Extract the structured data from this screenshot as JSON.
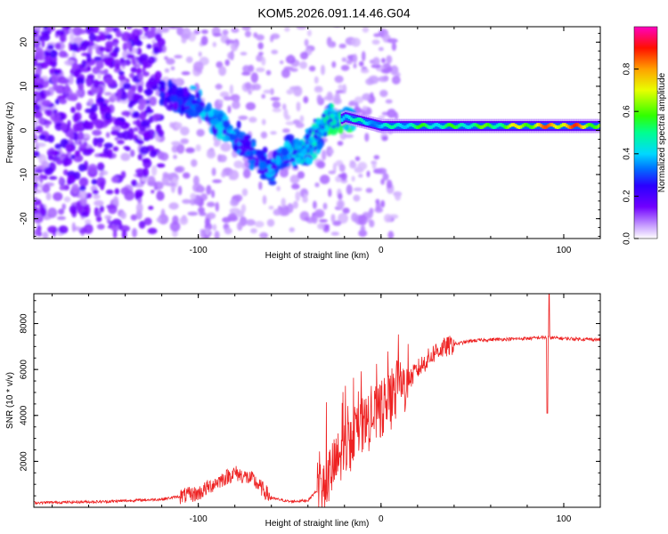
{
  "title": "KOM5.2026.091.14.46.G04",
  "chart_data": [
    {
      "type": "heatmap",
      "xlabel": "Height of straight line (km)",
      "ylabel": "Frequency (Hz)",
      "xlim": [
        -190,
        120
      ],
      "ylim": [
        -24.5,
        23.5
      ],
      "xticks": [
        -100,
        0,
        100
      ],
      "xtick_labels": [
        "-100",
        "0",
        "100"
      ],
      "yticks": [
        -20,
        -10,
        0,
        10,
        20
      ],
      "ytick_labels": [
        "-20",
        "-10",
        "0",
        "10",
        "20"
      ],
      "colorbar": {
        "label": "Normalized spectral amplitude",
        "range": [
          0.0,
          1.0
        ],
        "ticks": [
          0.0,
          0.2,
          0.4,
          0.6,
          0.8
        ],
        "tick_labels": [
          "0.0",
          "0.2",
          "0.4",
          "0.6",
          "0.8"
        ],
        "colors": [
          "#ffffff",
          "#9b30ff",
          "#4b00ff",
          "#0064ff",
          "#00e6ff",
          "#00ff64",
          "#5aff00",
          "#ffff00",
          "#ff8000",
          "#ff0000",
          "#ff00b4"
        ]
      },
      "ridge": {
        "x": [
          -115,
          -100,
          -90,
          -80,
          -70,
          -60,
          -50,
          -40,
          -30,
          -25,
          -20,
          -10,
          0,
          10,
          20,
          40,
          60,
          80,
          100,
          120
        ],
        "y": [
          8,
          5,
          2,
          -2,
          -5,
          -9,
          -4,
          -5,
          1,
          2,
          3,
          2,
          1,
          1,
          1,
          1,
          1,
          1,
          1,
          1
        ],
        "amplitude": [
          0.25,
          0.35,
          0.4,
          0.35,
          0.3,
          0.35,
          0.4,
          0.4,
          0.5,
          0.55,
          0.5,
          0.45,
          0.45,
          0.5,
          0.55,
          0.55,
          0.6,
          0.75,
          0.9,
          0.7
        ]
      }
    },
    {
      "type": "line",
      "xlabel": "Height of straight line (km)",
      "ylabel": "SNR (10 * v/v)",
      "xlim": [
        -190,
        120
      ],
      "ylim": [
        0,
        9300
      ],
      "xticks": [
        -100,
        0,
        100
      ],
      "xtick_labels": [
        "-100",
        "0",
        "100"
      ],
      "yticks": [
        2000,
        4000,
        6000,
        8000
      ],
      "ytick_labels": [
        "2000",
        "4000",
        "6000",
        "8000"
      ],
      "color": "#ee2222",
      "trend": {
        "x": [
          -190,
          -150,
          -120,
          -100,
          -90,
          -80,
          -70,
          -60,
          -50,
          -40,
          -30,
          -20,
          -10,
          0,
          10,
          20,
          30,
          40,
          50,
          60,
          80,
          90,
          100,
          120
        ],
        "y": [
          200,
          250,
          350,
          600,
          1100,
          1500,
          1200,
          400,
          250,
          300,
          1200,
          2500,
          3500,
          4200,
          5000,
          6000,
          6800,
          7100,
          7250,
          7300,
          7350,
          7400,
          7350,
          7300
        ]
      },
      "spikes": [
        {
          "x": 92,
          "y": 9300
        },
        {
          "x": 91,
          "y": 4100
        }
      ]
    }
  ]
}
